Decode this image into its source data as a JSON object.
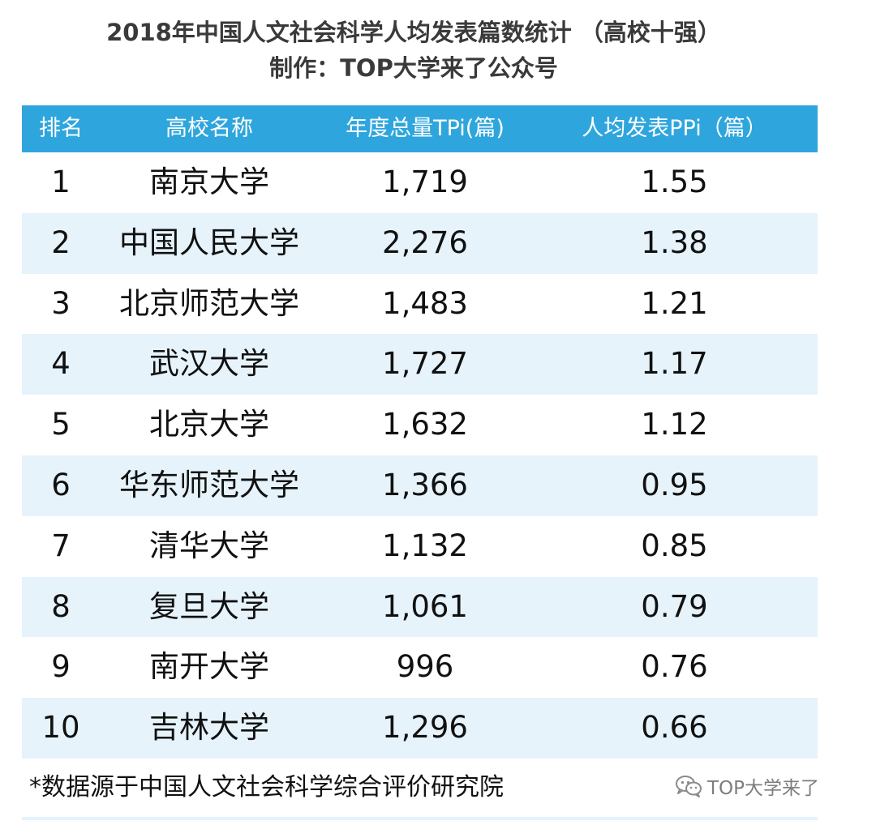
{
  "title": {
    "line1": "2018年中国人文社会科学人均发表篇数统计 （高校十强）",
    "line2": "制作：TOP大学来了公众号"
  },
  "table": {
    "headers": {
      "rank": "排名",
      "name": "高校名称",
      "total": "年度总量TPi(篇)",
      "per_capita": "人均发表PPi（篇）"
    },
    "header_color": "#2ea6dd",
    "alt_row_color": "#e6f3fb",
    "rows": [
      {
        "rank": "1",
        "name": "南京大学",
        "total": "1,719",
        "per_capita": "1.55"
      },
      {
        "rank": "2",
        "name": "中国人民大学",
        "total": "2,276",
        "per_capita": "1.38"
      },
      {
        "rank": "3",
        "name": "北京师范大学",
        "total": "1,483",
        "per_capita": "1.21"
      },
      {
        "rank": "4",
        "name": "武汉大学",
        "total": "1,727",
        "per_capita": "1.17"
      },
      {
        "rank": "5",
        "name": "北京大学",
        "total": "1,632",
        "per_capita": "1.12"
      },
      {
        "rank": "6",
        "name": "华东师范大学",
        "total": "1,366",
        "per_capita": "0.95"
      },
      {
        "rank": "7",
        "name": "清华大学",
        "total": "1,132",
        "per_capita": "0.85"
      },
      {
        "rank": "8",
        "name": "复旦大学",
        "total": "1,061",
        "per_capita": "0.79"
      },
      {
        "rank": "9",
        "name": "南开大学",
        "total": "996",
        "per_capita": "0.76"
      },
      {
        "rank": "10",
        "name": "吉林大学",
        "total": "1,296",
        "per_capita": "0.66"
      }
    ]
  },
  "footer": {
    "note": "*数据源于中国人文社会科学综合评价研究院"
  },
  "watermark": {
    "icon": "wechat-icon",
    "text": "TOP大学来了"
  }
}
